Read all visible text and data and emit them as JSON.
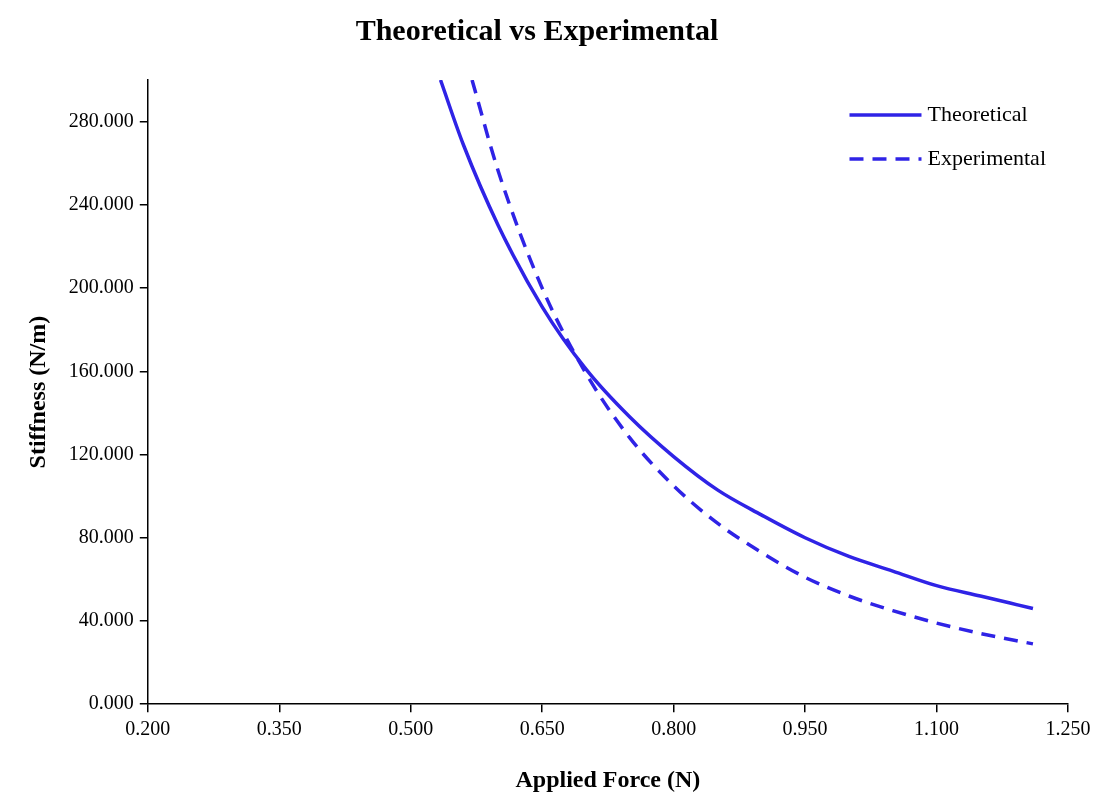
{
  "chart_data": {
    "type": "line",
    "title": "Theoretical vs Experimental",
    "xlabel": "Applied Force (N)",
    "ylabel": "Stiffness (N/m)",
    "series": [
      {
        "name": "Theoretical",
        "color": "#2f23e6",
        "line_style": "solid",
        "x": [
          0.534,
          0.56,
          0.6,
          0.65,
          0.7,
          0.75,
          0.8,
          0.85,
          0.9,
          0.95,
          1.0,
          1.05,
          1.1,
          1.15,
          1.21
        ],
        "values": [
          300,
          269,
          230,
          191,
          161,
          138,
          119,
          103,
          91,
          80,
          71,
          64,
          57,
          52,
          46
        ]
      },
      {
        "name": "Experimental",
        "color": "#2f23e6",
        "line_style": "dashed",
        "x": [
          0.57,
          0.6,
          0.65,
          0.7,
          0.75,
          0.8,
          0.85,
          0.9,
          0.95,
          1.0,
          1.05,
          1.1,
          1.15,
          1.21
        ],
        "values": [
          300,
          256,
          200,
          159,
          128,
          105,
          87,
          73,
          61,
          52,
          45,
          39,
          34,
          29
        ]
      }
    ],
    "xlim": [
      0.2,
      1.25
    ],
    "xticks": [
      {
        "value": 0.2,
        "label": "0.200"
      },
      {
        "value": 0.35,
        "label": "0.350"
      },
      {
        "value": 0.5,
        "label": "0.500"
      },
      {
        "value": 0.65,
        "label": "0.650"
      },
      {
        "value": 0.8,
        "label": "0.800"
      },
      {
        "value": 0.95,
        "label": "0.950"
      },
      {
        "value": 1.1,
        "label": "1.100"
      },
      {
        "value": 1.25,
        "label": "1.250"
      }
    ],
    "ylim": [
      0,
      300
    ],
    "yticks": [
      {
        "value": 0,
        "label": "0.000"
      },
      {
        "value": 40,
        "label": "40.000"
      },
      {
        "value": 80,
        "label": "80.000"
      },
      {
        "value": 120,
        "label": "120.000"
      },
      {
        "value": 160,
        "label": "160.000"
      },
      {
        "value": 200,
        "label": "200.000"
      },
      {
        "value": 240,
        "label": "240.000"
      },
      {
        "value": 280,
        "label": "280.000"
      }
    ],
    "grid": false,
    "legend": "top right",
    "marker": "none"
  }
}
